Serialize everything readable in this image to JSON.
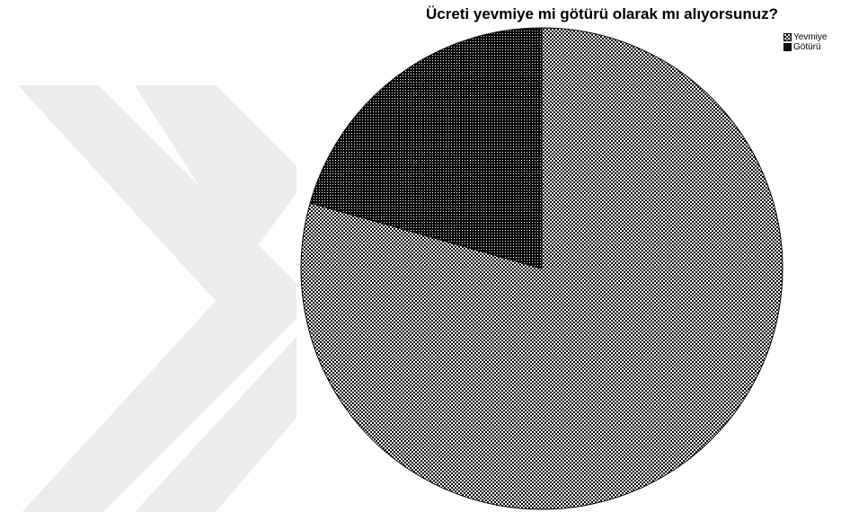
{
  "chart_data": {
    "type": "pie",
    "title": "Ücreti yevmiye mi götürü olarak mı alıyorsunuz?",
    "labels": [
      "Yevmiye",
      "Götürü"
    ],
    "values": [
      79.4,
      20.6
    ],
    "start_angle_deg": 0,
    "direction": "clockwise",
    "patterns": [
      "fine-checkerboard",
      "dense-dots"
    ],
    "legend_position": "top-right",
    "colors": {
      "ink": "#000000",
      "background": "#ffffff",
      "watermark": "#ececec"
    }
  }
}
